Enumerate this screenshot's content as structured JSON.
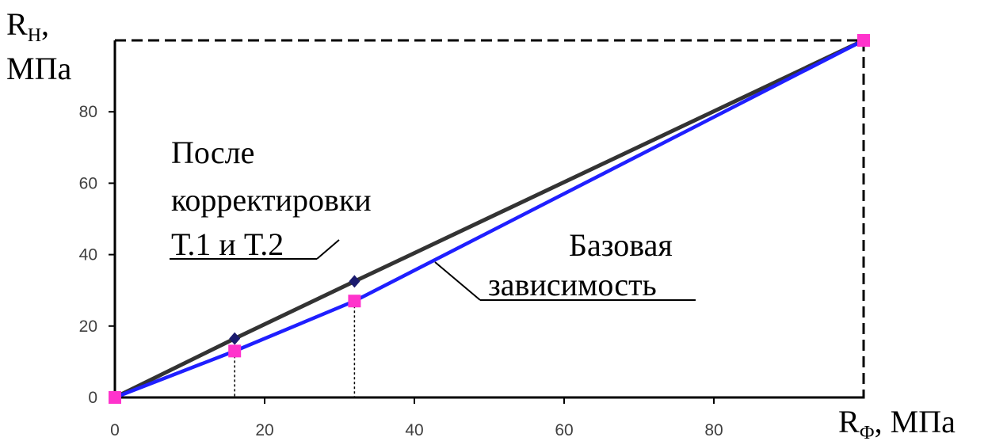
{
  "chart_data": {
    "type": "line",
    "y_label": {
      "main": "R",
      "sub": "Н",
      "tail": ",",
      "unit": "МПа"
    },
    "x_label": {
      "main": "R",
      "sub": "Ф",
      "tail": ", МПа"
    },
    "xlim": [
      0,
      100
    ],
    "ylim": [
      0,
      100
    ],
    "x_ticks": [
      "0",
      "20",
      "40",
      "60",
      "80"
    ],
    "y_ticks": [
      "0",
      "20",
      "40",
      "60",
      "80"
    ],
    "series": [
      {
        "color": "#333333",
        "marker": "diamond",
        "marker_color": "#1a1a6e",
        "x": [
          0,
          16,
          32,
          100
        ],
        "y": [
          0,
          16.5,
          32.5,
          100
        ]
      },
      {
        "color": "#1f1fff",
        "marker": "square",
        "marker_color": "#ff33cc",
        "x": [
          0,
          16,
          32,
          100
        ],
        "y": [
          0,
          13,
          27,
          100
        ]
      }
    ],
    "annotations": [
      {
        "lines": [
          "После",
          "корректировки",
          "Т.1 и Т.2"
        ]
      },
      {
        "lines": [
          "Базовая",
          "зависимость"
        ]
      }
    ]
  }
}
